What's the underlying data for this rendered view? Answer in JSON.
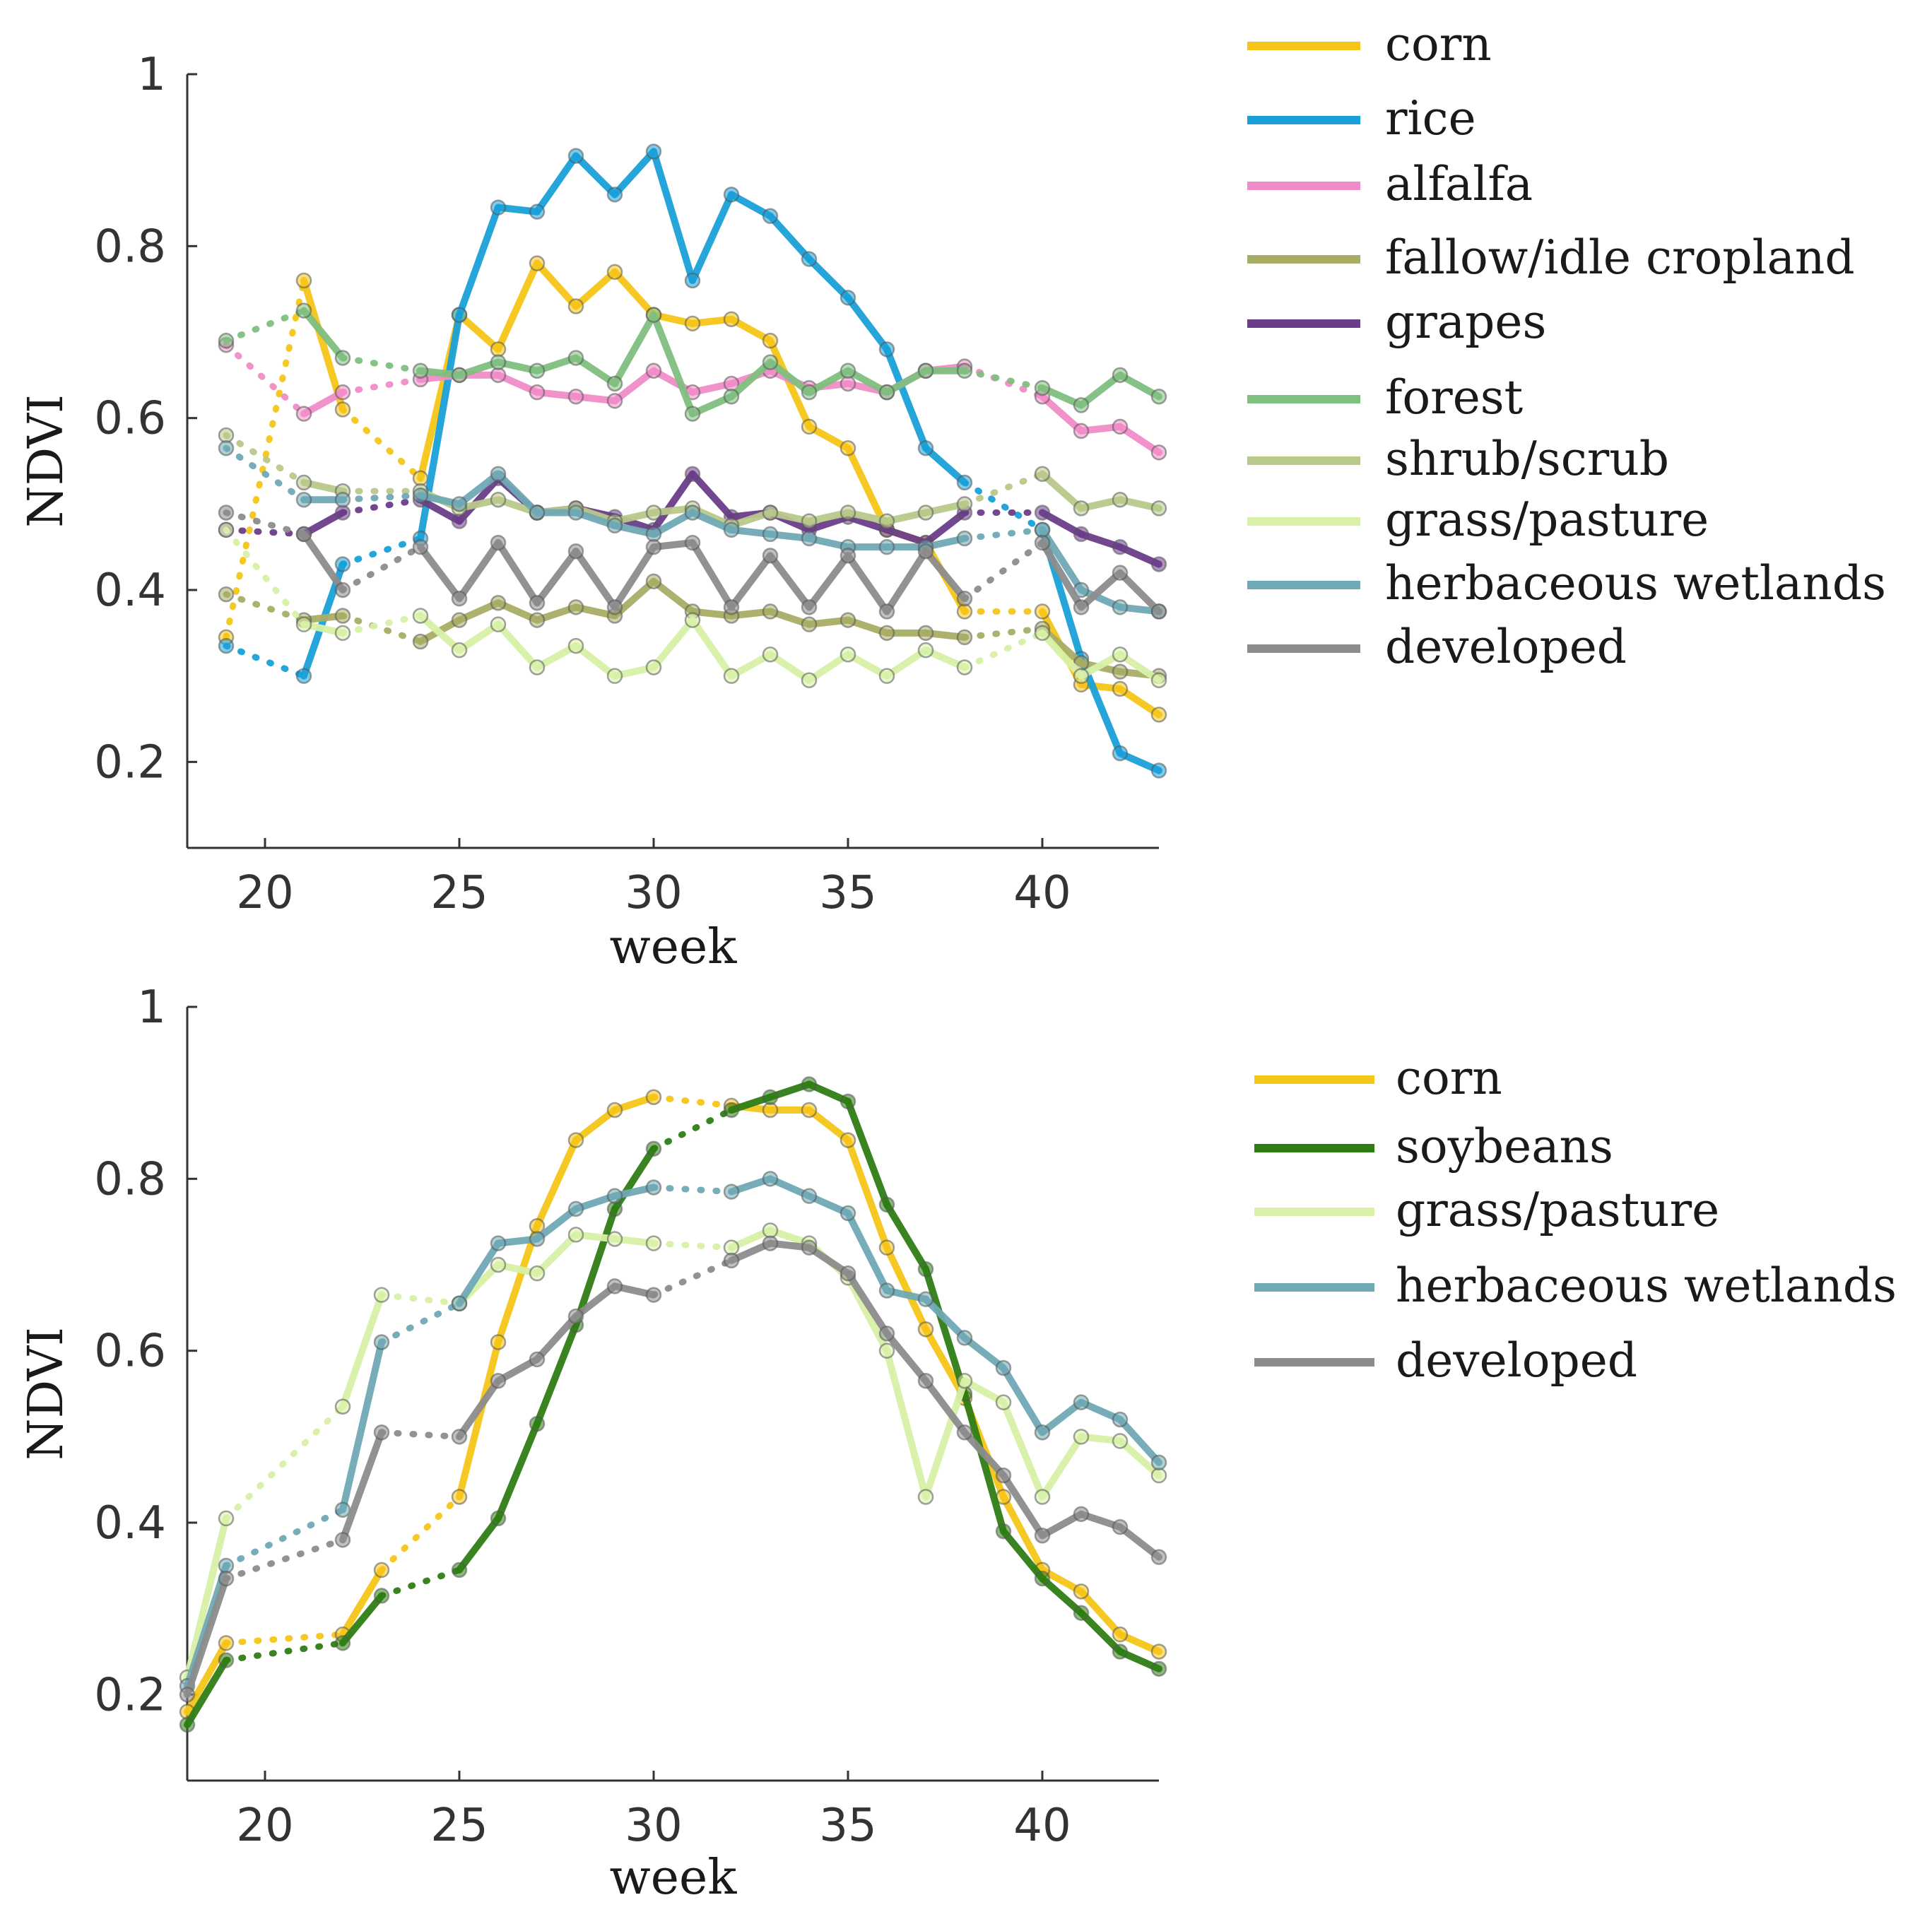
{
  "chart_data": [
    {
      "type": "line",
      "xlabel": "week",
      "ylabel": "NDVI",
      "xlim": [
        18,
        43
      ],
      "ylim": [
        0.1,
        1.0
      ],
      "xticks": [
        "20",
        "25",
        "30",
        "35",
        "40"
      ],
      "xtick_values": [
        20,
        25,
        30,
        35,
        40
      ],
      "yticks": [
        "0.2",
        "0.4",
        "0.6",
        "0.8",
        "1"
      ],
      "ytick_values": [
        0.2,
        0.4,
        0.6,
        0.8,
        1.0
      ],
      "grid": false,
      "legend_position": "right",
      "series": [
        {
          "name": "corn",
          "color": "#f5c518",
          "weeks": [
            19,
            21,
            22,
            24,
            25,
            26,
            27,
            28,
            29,
            30,
            31,
            32,
            33,
            34,
            35,
            36,
            37,
            38,
            40,
            41,
            42,
            43
          ],
          "values": [
            0.345,
            0.76,
            0.61,
            0.53,
            0.72,
            0.68,
            0.78,
            0.73,
            0.77,
            0.72,
            0.71,
            0.715,
            0.69,
            0.59,
            0.565,
            0.47,
            0.455,
            0.375,
            0.375,
            0.29,
            0.285,
            0.255
          ]
        },
        {
          "name": "rice",
          "color": "#1aa0d8",
          "weeks": [
            19,
            21,
            22,
            24,
            25,
            26,
            27,
            28,
            29,
            30,
            31,
            32,
            33,
            34,
            35,
            36,
            37,
            38,
            40,
            41,
            42,
            43
          ],
          "values": [
            0.335,
            0.3,
            0.43,
            0.46,
            0.72,
            0.845,
            0.84,
            0.905,
            0.86,
            0.91,
            0.76,
            0.86,
            0.835,
            0.785,
            0.74,
            0.68,
            0.565,
            0.525,
            0.47,
            0.32,
            0.21,
            0.19
          ]
        },
        {
          "name": "alfalfa",
          "color": "#f08cc8",
          "weeks": [
            19,
            21,
            22,
            24,
            25,
            26,
            27,
            28,
            29,
            30,
            31,
            32,
            33,
            34,
            35,
            36,
            37,
            38,
            40,
            41,
            42,
            43
          ],
          "values": [
            0.685,
            0.605,
            0.63,
            0.645,
            0.65,
            0.65,
            0.63,
            0.625,
            0.62,
            0.655,
            0.63,
            0.64,
            0.655,
            0.635,
            0.64,
            0.63,
            0.655,
            0.66,
            0.625,
            0.585,
            0.59,
            0.56
          ]
        },
        {
          "name": "fallow/idle cropland",
          "color": "#a8ad66",
          "weeks": [
            19,
            21,
            22,
            24,
            25,
            26,
            27,
            28,
            29,
            30,
            31,
            32,
            33,
            34,
            35,
            36,
            37,
            38,
            40,
            41,
            42,
            43
          ],
          "values": [
            0.395,
            0.365,
            0.37,
            0.34,
            0.365,
            0.385,
            0.365,
            0.38,
            0.37,
            0.41,
            0.375,
            0.37,
            0.375,
            0.36,
            0.365,
            0.35,
            0.35,
            0.345,
            0.355,
            0.315,
            0.305,
            0.3
          ]
        },
        {
          "name": "grapes",
          "color": "#6a3d8a",
          "weeks": [
            19,
            21,
            22,
            24,
            25,
            26,
            27,
            28,
            29,
            30,
            31,
            32,
            33,
            34,
            35,
            36,
            37,
            38,
            40,
            41,
            42,
            43
          ],
          "values": [
            0.47,
            0.465,
            0.49,
            0.505,
            0.48,
            0.53,
            0.49,
            0.495,
            0.485,
            0.47,
            0.535,
            0.485,
            0.49,
            0.47,
            0.485,
            0.47,
            0.455,
            0.49,
            0.49,
            0.465,
            0.45,
            0.43
          ]
        },
        {
          "name": "forest",
          "color": "#7fbf7f",
          "weeks": [
            19,
            21,
            22,
            24,
            25,
            26,
            27,
            28,
            29,
            30,
            31,
            32,
            33,
            34,
            35,
            36,
            37,
            38,
            40,
            41,
            42,
            43
          ],
          "values": [
            0.69,
            0.725,
            0.67,
            0.655,
            0.65,
            0.665,
            0.655,
            0.67,
            0.64,
            0.72,
            0.605,
            0.625,
            0.665,
            0.63,
            0.655,
            0.63,
            0.655,
            0.655,
            0.635,
            0.615,
            0.65,
            0.625
          ]
        },
        {
          "name": "shrub/scrub",
          "color": "#b8c98a",
          "weeks": [
            19,
            21,
            22,
            24,
            25,
            26,
            27,
            28,
            29,
            30,
            31,
            32,
            33,
            34,
            35,
            36,
            37,
            38,
            40,
            41,
            42,
            43
          ],
          "values": [
            0.58,
            0.525,
            0.515,
            0.515,
            0.495,
            0.505,
            0.49,
            0.495,
            0.48,
            0.49,
            0.495,
            0.475,
            0.49,
            0.48,
            0.49,
            0.48,
            0.49,
            0.5,
            0.535,
            0.495,
            0.505,
            0.495
          ]
        },
        {
          "name": "grass/pasture",
          "color": "#d8f0a8",
          "weeks": [
            19,
            21,
            22,
            24,
            25,
            26,
            27,
            28,
            29,
            30,
            31,
            32,
            33,
            34,
            35,
            36,
            37,
            38,
            40,
            41,
            42,
            43
          ],
          "values": [
            0.47,
            0.36,
            0.35,
            0.37,
            0.33,
            0.36,
            0.31,
            0.335,
            0.3,
            0.31,
            0.365,
            0.3,
            0.325,
            0.295,
            0.325,
            0.3,
            0.33,
            0.31,
            0.35,
            0.3,
            0.325,
            0.295
          ]
        },
        {
          "name": "herbaceous wetlands",
          "color": "#6fa9b5",
          "weeks": [
            19,
            21,
            22,
            24,
            25,
            26,
            27,
            28,
            29,
            30,
            31,
            32,
            33,
            34,
            35,
            36,
            37,
            38,
            40,
            41,
            42,
            43
          ],
          "values": [
            0.565,
            0.505,
            0.505,
            0.51,
            0.5,
            0.535,
            0.49,
            0.49,
            0.475,
            0.465,
            0.49,
            0.47,
            0.465,
            0.46,
            0.45,
            0.45,
            0.45,
            0.46,
            0.47,
            0.4,
            0.38,
            0.375
          ]
        },
        {
          "name": "developed",
          "color": "#8c8c8c",
          "weeks": [
            19,
            21,
            22,
            24,
            25,
            26,
            27,
            28,
            29,
            30,
            31,
            32,
            33,
            34,
            35,
            36,
            37,
            38,
            40,
            41,
            42,
            43
          ],
          "values": [
            0.49,
            0.465,
            0.4,
            0.45,
            0.39,
            0.455,
            0.385,
            0.445,
            0.38,
            0.45,
            0.455,
            0.38,
            0.44,
            0.38,
            0.44,
            0.375,
            0.445,
            0.39,
            0.455,
            0.38,
            0.42,
            0.375
          ]
        }
      ]
    },
    {
      "type": "line",
      "xlabel": "week",
      "ylabel": "NDVI",
      "xlim": [
        18,
        43
      ],
      "ylim": [
        0.1,
        1.0
      ],
      "xticks": [
        "20",
        "25",
        "30",
        "35",
        "40"
      ],
      "xtick_values": [
        20,
        25,
        30,
        35,
        40
      ],
      "yticks": [
        "0.2",
        "0.4",
        "0.6",
        "0.8",
        "1"
      ],
      "ytick_values": [
        0.2,
        0.4,
        0.6,
        0.8,
        1.0
      ],
      "grid": false,
      "legend_position": "right",
      "series": [
        {
          "name": "corn",
          "color": "#f5c518",
          "weeks": [
            18,
            19,
            22,
            23,
            25,
            26,
            27,
            28,
            29,
            30,
            32,
            33,
            34,
            35,
            36,
            37,
            38,
            39,
            40,
            41,
            42,
            43
          ],
          "values": [
            0.18,
            0.26,
            0.27,
            0.345,
            0.43,
            0.61,
            0.745,
            0.845,
            0.88,
            0.895,
            0.885,
            0.88,
            0.88,
            0.845,
            0.72,
            0.625,
            0.545,
            0.43,
            0.345,
            0.32,
            0.27,
            0.25
          ]
        },
        {
          "name": "soybeans",
          "color": "#2e7d14",
          "weeks": [
            18,
            19,
            22,
            23,
            25,
            26,
            27,
            28,
            29,
            30,
            32,
            33,
            34,
            35,
            36,
            37,
            38,
            39,
            40,
            41,
            42,
            43
          ],
          "values": [
            0.165,
            0.24,
            0.26,
            0.315,
            0.345,
            0.405,
            0.515,
            0.63,
            0.765,
            0.835,
            0.88,
            0.895,
            0.91,
            0.89,
            0.77,
            0.695,
            0.55,
            0.39,
            0.335,
            0.295,
            0.25,
            0.23
          ]
        },
        {
          "name": "grass/pasture",
          "color": "#d8f0a8",
          "weeks": [
            18,
            19,
            22,
            23,
            25,
            26,
            27,
            28,
            29,
            30,
            32,
            33,
            34,
            35,
            36,
            37,
            38,
            39,
            40,
            41,
            42,
            43
          ],
          "values": [
            0.22,
            0.405,
            0.535,
            0.665,
            0.655,
            0.7,
            0.69,
            0.735,
            0.73,
            0.725,
            0.72,
            0.74,
            0.725,
            0.685,
            0.6,
            0.43,
            0.565,
            0.54,
            0.43,
            0.5,
            0.495,
            0.455
          ]
        },
        {
          "name": "herbaceous wetlands",
          "color": "#6fa9b5",
          "weeks": [
            18,
            19,
            22,
            23,
            25,
            26,
            27,
            28,
            29,
            30,
            32,
            33,
            34,
            35,
            36,
            37,
            38,
            39,
            40,
            41,
            42,
            43
          ],
          "values": [
            0.21,
            0.35,
            0.415,
            0.61,
            0.655,
            0.725,
            0.73,
            0.765,
            0.78,
            0.79,
            0.785,
            0.8,
            0.78,
            0.76,
            0.67,
            0.66,
            0.615,
            0.58,
            0.505,
            0.54,
            0.52,
            0.47
          ]
        },
        {
          "name": "developed",
          "color": "#8c8c8c",
          "weeks": [
            18,
            19,
            22,
            23,
            25,
            26,
            27,
            28,
            29,
            30,
            32,
            33,
            34,
            35,
            36,
            37,
            38,
            39,
            40,
            41,
            42,
            43
          ],
          "values": [
            0.2,
            0.335,
            0.38,
            0.505,
            0.5,
            0.565,
            0.59,
            0.64,
            0.675,
            0.665,
            0.705,
            0.725,
            0.72,
            0.69,
            0.62,
            0.565,
            0.505,
            0.455,
            0.385,
            0.41,
            0.395,
            0.36
          ]
        }
      ]
    }
  ]
}
